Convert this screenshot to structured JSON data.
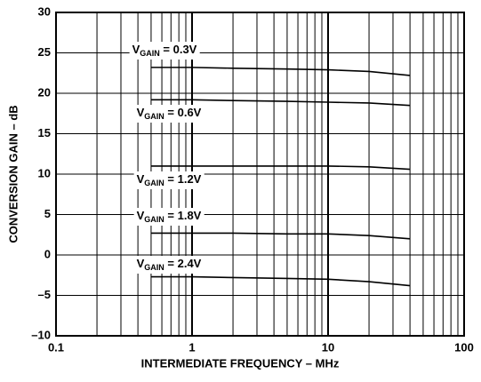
{
  "chart_data": {
    "type": "line",
    "log_x": true,
    "grid": true,
    "color": "#000000",
    "x_label": "INTERMEDIATE FREQUENCY – MHz",
    "y_label": "CONVERSION GAIN – dB",
    "x": [
      0.5,
      1,
      2,
      5,
      10,
      20,
      40
    ],
    "series": [
      {
        "name_parts": [
          "V",
          "GAIN",
          " = 0.3V"
        ],
        "values": [
          23.2,
          23.2,
          23.1,
          23.0,
          22.9,
          22.7,
          22.2
        ]
      },
      {
        "name_parts": [
          "V",
          "GAIN",
          " = 0.6V"
        ],
        "values": [
          19.2,
          19.2,
          19.1,
          19.0,
          18.9,
          18.8,
          18.5
        ]
      },
      {
        "name_parts": [
          "V",
          "GAIN",
          " = 1.2V"
        ],
        "values": [
          11.0,
          11.0,
          11.0,
          11.0,
          11.0,
          10.9,
          10.6
        ]
      },
      {
        "name_parts": [
          "V",
          "GAIN",
          " = 1.8V"
        ],
        "values": [
          2.7,
          2.7,
          2.7,
          2.6,
          2.6,
          2.4,
          2.0
        ]
      },
      {
        "name_parts": [
          "V",
          "GAIN",
          " = 2.4V"
        ],
        "values": [
          -2.7,
          -2.7,
          -2.8,
          -2.9,
          -3.0,
          -3.3,
          -3.8
        ]
      }
    ],
    "xlim": [
      0.1,
      100
    ],
    "xticks": [
      0.1,
      1,
      10,
      100
    ],
    "ylim": [
      -10,
      30
    ],
    "yticks": [
      {
        "value": -10,
        "label": "–10"
      },
      {
        "value": -5,
        "label": "–5"
      },
      0,
      5,
      10,
      15,
      20,
      25,
      30
    ]
  }
}
